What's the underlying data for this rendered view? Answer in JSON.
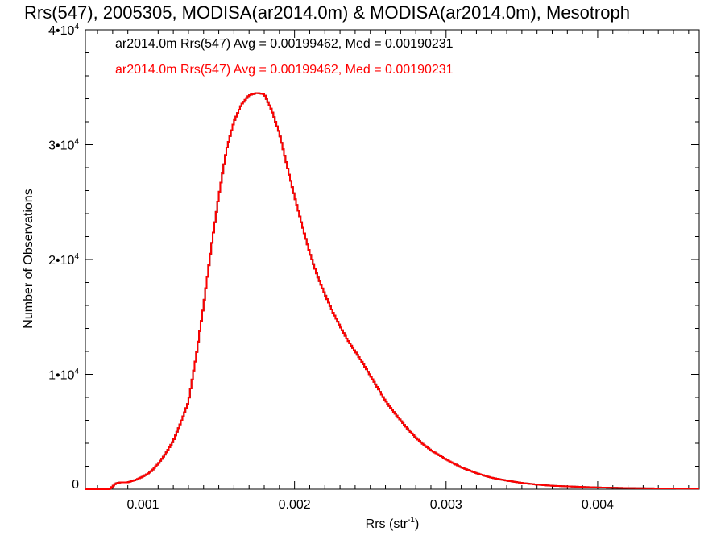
{
  "chart_data": {
    "type": "line",
    "title": "Rrs(547), 2005305, MODISA(ar2014.0m) & MODISA(ar2014.0m), Mesotroph",
    "xlabel": "Rrs (str",
    "xlabel_sup": "-1",
    "xlabel_close": ")",
    "ylabel": "Number of Observations",
    "xlim": [
      0.00062,
      0.00467
    ],
    "ylim": [
      0,
      40000
    ],
    "x_ticks": [
      {
        "value": 0.001,
        "label": "0.001"
      },
      {
        "value": 0.002,
        "label": "0.002"
      },
      {
        "value": 0.003,
        "label": "0.003"
      },
      {
        "value": 0.004,
        "label": "0.004"
      }
    ],
    "y_ticks": [
      {
        "value": 0,
        "label": "0",
        "exp": ""
      },
      {
        "value": 10000,
        "label": "1•10",
        "exp": "4"
      },
      {
        "value": 20000,
        "label": "2•10",
        "exp": "4"
      },
      {
        "value": 30000,
        "label": "3•10",
        "exp": "4"
      },
      {
        "value": 40000,
        "label": "4•10",
        "exp": "4"
      }
    ],
    "grid": false,
    "legend_position": "top-left",
    "series": [
      {
        "name": "ar2014.0m Rrs(547) Avg = 0.00199462, Med = 0.00190231",
        "color": "#000000",
        "x": [
          0.00062,
          0.00078,
          0.00082,
          0.00085,
          0.0009,
          0.00095,
          0.001,
          0.00105,
          0.0011,
          0.00115,
          0.0012,
          0.00125,
          0.0013,
          0.00135,
          0.0014,
          0.00145,
          0.0015,
          0.00155,
          0.0016,
          0.00165,
          0.0017,
          0.00175,
          0.0018,
          0.00185,
          0.0019,
          0.00195,
          0.002,
          0.00205,
          0.0021,
          0.00215,
          0.0022,
          0.00225,
          0.0023,
          0.00235,
          0.0024,
          0.00245,
          0.0025,
          0.00255,
          0.0026,
          0.00265,
          0.0027,
          0.00275,
          0.0028,
          0.00285,
          0.0029,
          0.003,
          0.0031,
          0.0032,
          0.0033,
          0.0034,
          0.0035,
          0.0036,
          0.0037,
          0.0038,
          0.0039,
          0.004,
          0.0042,
          0.0044,
          0.00467
        ],
        "y": [
          0,
          0,
          500,
          600,
          600,
          800,
          1100,
          1500,
          2200,
          3100,
          4200,
          5800,
          7600,
          11500,
          16000,
          21000,
          25500,
          29500,
          32000,
          33500,
          34300,
          34500,
          34400,
          33000,
          31000,
          28200,
          25500,
          23000,
          20600,
          18600,
          17000,
          15500,
          14200,
          13000,
          12000,
          11000,
          9900,
          8800,
          7700,
          6800,
          6000,
          5200,
          4500,
          3900,
          3400,
          2600,
          1900,
          1400,
          1000,
          750,
          550,
          400,
          300,
          250,
          200,
          150,
          100,
          70,
          60
        ]
      },
      {
        "name": "ar2014.0m Rrs(547) Avg = 0.00199462, Med = 0.00190231",
        "color": "#ff0000",
        "x": [
          0.00062,
          0.00078,
          0.00082,
          0.00085,
          0.0009,
          0.00095,
          0.001,
          0.00105,
          0.0011,
          0.00115,
          0.0012,
          0.00125,
          0.0013,
          0.00135,
          0.0014,
          0.00145,
          0.0015,
          0.00155,
          0.0016,
          0.00165,
          0.0017,
          0.00175,
          0.0018,
          0.00185,
          0.0019,
          0.00195,
          0.002,
          0.00205,
          0.0021,
          0.00215,
          0.0022,
          0.00225,
          0.0023,
          0.00235,
          0.0024,
          0.00245,
          0.0025,
          0.00255,
          0.0026,
          0.00265,
          0.0027,
          0.00275,
          0.0028,
          0.00285,
          0.0029,
          0.003,
          0.0031,
          0.0032,
          0.0033,
          0.0034,
          0.0035,
          0.0036,
          0.0037,
          0.0038,
          0.0039,
          0.004,
          0.0042,
          0.0044,
          0.00467
        ],
        "y": [
          0,
          0,
          500,
          600,
          600,
          800,
          1100,
          1500,
          2200,
          3100,
          4200,
          5800,
          7600,
          11500,
          16000,
          21000,
          25500,
          29500,
          32000,
          33500,
          34300,
          34500,
          34400,
          33000,
          31000,
          28200,
          25500,
          23000,
          20600,
          18600,
          17000,
          15500,
          14200,
          13000,
          12000,
          11000,
          9900,
          8800,
          7700,
          6800,
          6000,
          5200,
          4500,
          3900,
          3400,
          2600,
          1900,
          1400,
          1000,
          750,
          550,
          400,
          300,
          250,
          200,
          150,
          100,
          70,
          60
        ]
      }
    ]
  }
}
